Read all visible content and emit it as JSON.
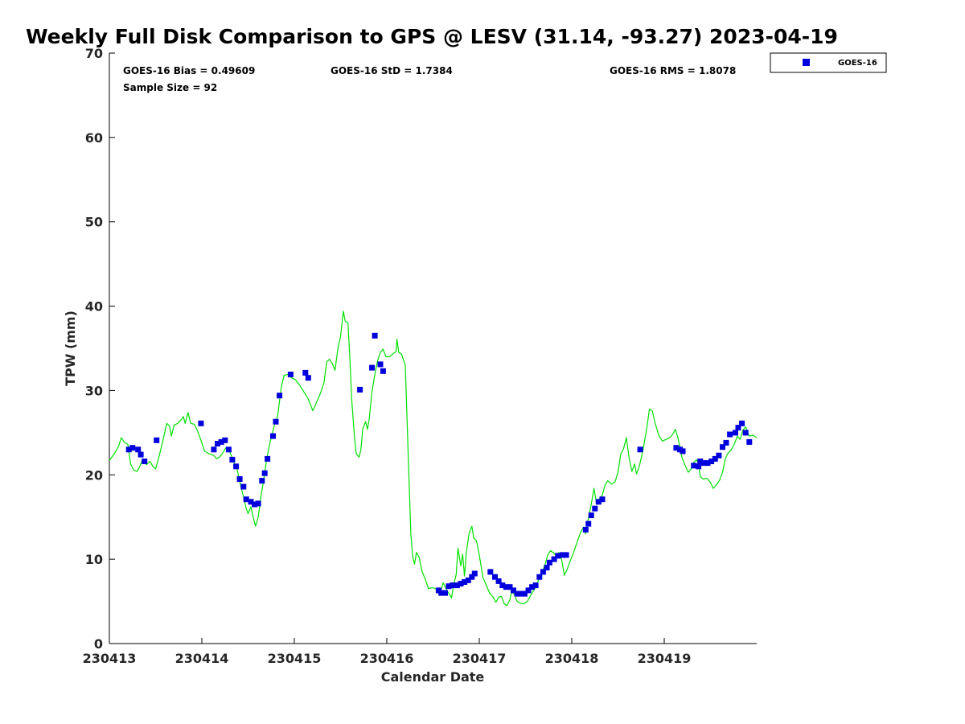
{
  "chart_data": {
    "type": "scatter",
    "title": "Weekly Full Disk Comparison to GPS @ LESV (31.14, -93.27) 2023-04-19",
    "xlabel": "Calendar Date",
    "ylabel": "TPW (mm)",
    "xlim": [
      0,
      7
    ],
    "ylim": [
      0,
      70
    ],
    "x_tick_labels": [
      "230413",
      "230414",
      "230415",
      "230416",
      "230417",
      "230418",
      "230419"
    ],
    "y_ticks": [
      0,
      10,
      20,
      30,
      40,
      50,
      60,
      70
    ],
    "grid": false,
    "legend_placement": "outside-top-right",
    "stats": {
      "bias": "GOES-16 Bias = 0.49609",
      "std": "GOES-16 StD = 1.7384",
      "rms": "GOES-16 RMS = 1.8078",
      "sample": "Sample Size = 92"
    },
    "series": [
      {
        "name": "GOES-16",
        "kind": "scatter",
        "color": "#0000dd",
        "points": [
          [
            0.21,
            23.0
          ],
          [
            0.25,
            23.2
          ],
          [
            0.31,
            23.0
          ],
          [
            0.34,
            22.4
          ],
          [
            0.38,
            21.6
          ],
          [
            0.51,
            24.1
          ],
          [
            0.99,
            26.1
          ],
          [
            1.13,
            23.0
          ],
          [
            1.17,
            23.7
          ],
          [
            1.21,
            23.9
          ],
          [
            1.25,
            24.1
          ],
          [
            1.29,
            23.0
          ],
          [
            1.33,
            21.8
          ],
          [
            1.37,
            21.0
          ],
          [
            1.41,
            19.5
          ],
          [
            1.45,
            18.6
          ],
          [
            1.48,
            17.1
          ],
          [
            1.53,
            16.8
          ],
          [
            1.57,
            16.5
          ],
          [
            1.61,
            16.6
          ],
          [
            1.65,
            19.3
          ],
          [
            1.68,
            20.2
          ],
          [
            1.71,
            21.9
          ],
          [
            1.77,
            24.6
          ],
          [
            1.8,
            26.3
          ],
          [
            1.84,
            29.4
          ],
          [
            1.96,
            31.9
          ],
          [
            2.12,
            32.1
          ],
          [
            2.15,
            31.5
          ],
          [
            2.71,
            30.1
          ],
          [
            2.84,
            32.7
          ],
          [
            2.87,
            36.5
          ],
          [
            2.93,
            33.1
          ],
          [
            2.96,
            32.3
          ],
          [
            3.56,
            6.3
          ],
          [
            3.59,
            6.0
          ],
          [
            3.63,
            6.0
          ],
          [
            3.67,
            6.8
          ],
          [
            3.71,
            6.9
          ],
          [
            3.76,
            6.9
          ],
          [
            3.8,
            7.1
          ],
          [
            3.84,
            7.3
          ],
          [
            3.88,
            7.5
          ],
          [
            3.92,
            7.9
          ],
          [
            3.95,
            8.3
          ],
          [
            4.12,
            8.5
          ],
          [
            4.17,
            7.9
          ],
          [
            4.21,
            7.4
          ],
          [
            4.25,
            6.9
          ],
          [
            4.29,
            6.7
          ],
          [
            4.33,
            6.7
          ],
          [
            4.37,
            6.3
          ],
          [
            4.41,
            5.9
          ],
          [
            4.45,
            5.9
          ],
          [
            4.49,
            5.9
          ],
          [
            4.53,
            6.3
          ],
          [
            4.57,
            6.7
          ],
          [
            4.61,
            6.9
          ],
          [
            4.65,
            7.9
          ],
          [
            4.69,
            8.5
          ],
          [
            4.73,
            9.0
          ],
          [
            4.76,
            9.6
          ],
          [
            4.81,
            10.0
          ],
          [
            4.85,
            10.4
          ],
          [
            4.9,
            10.5
          ],
          [
            4.94,
            10.5
          ],
          [
            5.15,
            13.5
          ],
          [
            5.18,
            14.2
          ],
          [
            5.21,
            15.2
          ],
          [
            5.25,
            16.0
          ],
          [
            5.29,
            16.8
          ],
          [
            5.33,
            17.1
          ],
          [
            5.74,
            23.0
          ],
          [
            6.13,
            23.2
          ],
          [
            6.17,
            23.0
          ],
          [
            6.2,
            22.8
          ],
          [
            6.32,
            21.1
          ],
          [
            6.37,
            21.0
          ],
          [
            6.39,
            21.6
          ],
          [
            6.43,
            21.4
          ],
          [
            6.47,
            21.4
          ],
          [
            6.51,
            21.6
          ],
          [
            6.55,
            21.9
          ],
          [
            6.59,
            22.3
          ],
          [
            6.63,
            23.3
          ],
          [
            6.67,
            23.8
          ],
          [
            6.71,
            24.8
          ],
          [
            6.77,
            25.0
          ],
          [
            6.8,
            25.6
          ],
          [
            6.84,
            26.1
          ],
          [
            6.88,
            25.0
          ],
          [
            6.92,
            23.9
          ]
        ]
      },
      {
        "name": "GPS",
        "kind": "line",
        "color": "#00e000",
        "points": [
          [
            0.0,
            21.7
          ],
          [
            0.06,
            22.6
          ],
          [
            0.1,
            23.4
          ],
          [
            0.13,
            24.4
          ],
          [
            0.16,
            23.9
          ],
          [
            0.2,
            23.6
          ],
          [
            0.23,
            21.3
          ],
          [
            0.26,
            20.6
          ],
          [
            0.3,
            20.4
          ],
          [
            0.33,
            21.0
          ],
          [
            0.36,
            21.9
          ],
          [
            0.4,
            21.2
          ],
          [
            0.44,
            21.6
          ],
          [
            0.47,
            21.0
          ],
          [
            0.5,
            20.7
          ],
          [
            0.54,
            22.3
          ],
          [
            0.58,
            24.1
          ],
          [
            0.62,
            26.1
          ],
          [
            0.65,
            25.8
          ],
          [
            0.67,
            24.6
          ],
          [
            0.7,
            25.9
          ],
          [
            0.74,
            26.1
          ],
          [
            0.78,
            26.6
          ],
          [
            0.8,
            26.9
          ],
          [
            0.82,
            26.1
          ],
          [
            0.85,
            27.4
          ],
          [
            0.88,
            26.1
          ],
          [
            0.92,
            26.0
          ],
          [
            0.95,
            25.3
          ],
          [
            0.99,
            24.1
          ],
          [
            1.03,
            22.8
          ],
          [
            1.08,
            22.5
          ],
          [
            1.13,
            22.3
          ],
          [
            1.16,
            21.9
          ],
          [
            1.19,
            22.1
          ],
          [
            1.22,
            22.5
          ],
          [
            1.26,
            23.2
          ],
          [
            1.3,
            22.8
          ],
          [
            1.34,
            21.7
          ],
          [
            1.38,
            20.7
          ],
          [
            1.42,
            18.7
          ],
          [
            1.45,
            17.4
          ],
          [
            1.48,
            16.0
          ],
          [
            1.5,
            15.4
          ],
          [
            1.53,
            16.2
          ],
          [
            1.55,
            15.2
          ],
          [
            1.58,
            13.9
          ],
          [
            1.61,
            15.0
          ],
          [
            1.64,
            17.5
          ],
          [
            1.67,
            19.5
          ],
          [
            1.7,
            21.8
          ],
          [
            1.74,
            24.0
          ],
          [
            1.78,
            25.7
          ],
          [
            1.82,
            27.0
          ],
          [
            1.86,
            30.5
          ],
          [
            1.89,
            31.8
          ],
          [
            1.93,
            31.9
          ],
          [
            1.97,
            31.5
          ],
          [
            2.01,
            31.3
          ],
          [
            2.06,
            30.6
          ],
          [
            2.1,
            29.9
          ],
          [
            2.15,
            29.0
          ],
          [
            2.2,
            27.6
          ],
          [
            2.24,
            28.6
          ],
          [
            2.28,
            29.6
          ],
          [
            2.32,
            30.9
          ],
          [
            2.35,
            33.4
          ],
          [
            2.38,
            33.7
          ],
          [
            2.41,
            33.2
          ],
          [
            2.44,
            32.4
          ],
          [
            2.47,
            34.9
          ],
          [
            2.5,
            36.4
          ],
          [
            2.53,
            39.4
          ],
          [
            2.55,
            38.2
          ],
          [
            2.58,
            38.0
          ],
          [
            2.6,
            34.0
          ],
          [
            2.62,
            29.0
          ],
          [
            2.65,
            24.5
          ],
          [
            2.67,
            22.5
          ],
          [
            2.7,
            22.1
          ],
          [
            2.72,
            23.0
          ],
          [
            2.74,
            25.5
          ],
          [
            2.77,
            26.3
          ],
          [
            2.79,
            25.4
          ],
          [
            2.81,
            26.6
          ],
          [
            2.84,
            29.9
          ],
          [
            2.87,
            31.9
          ],
          [
            2.9,
            33.5
          ],
          [
            2.93,
            34.5
          ],
          [
            2.96,
            34.9
          ],
          [
            2.99,
            34.0
          ],
          [
            3.03,
            34.0
          ],
          [
            3.07,
            34.4
          ],
          [
            3.1,
            34.6
          ],
          [
            3.11,
            36.1
          ],
          [
            3.13,
            34.5
          ],
          [
            3.16,
            34.3
          ],
          [
            3.2,
            33.0
          ],
          [
            3.23,
            23.0
          ],
          [
            3.26,
            13.0
          ],
          [
            3.28,
            10.3
          ],
          [
            3.3,
            9.4
          ],
          [
            3.32,
            10.8
          ],
          [
            3.35,
            10.2
          ],
          [
            3.38,
            8.6
          ],
          [
            3.42,
            7.5
          ],
          [
            3.45,
            6.5
          ],
          [
            3.48,
            6.6
          ],
          [
            3.51,
            6.6
          ],
          [
            3.55,
            6.3
          ],
          [
            3.57,
            5.7
          ],
          [
            3.61,
            7.2
          ],
          [
            3.65,
            6.3
          ],
          [
            3.68,
            5.8
          ],
          [
            3.7,
            5.4
          ],
          [
            3.72,
            6.8
          ],
          [
            3.75,
            8.2
          ],
          [
            3.77,
            11.3
          ],
          [
            3.8,
            9.2
          ],
          [
            3.82,
            10.6
          ],
          [
            3.84,
            8.0
          ],
          [
            3.86,
            10.8
          ],
          [
            3.89,
            13.1
          ],
          [
            3.92,
            13.9
          ],
          [
            3.94,
            12.5
          ],
          [
            3.97,
            12.2
          ],
          [
            4.0,
            10.5
          ],
          [
            4.04,
            7.8
          ],
          [
            4.07,
            7.1
          ],
          [
            4.11,
            6.0
          ],
          [
            4.15,
            5.5
          ],
          [
            4.18,
            4.9
          ],
          [
            4.21,
            5.5
          ],
          [
            4.24,
            5.6
          ],
          [
            4.27,
            4.7
          ],
          [
            4.3,
            4.5
          ],
          [
            4.33,
            5.2
          ],
          [
            4.35,
            6.2
          ],
          [
            4.38,
            5.8
          ],
          [
            4.41,
            5.0
          ],
          [
            4.44,
            4.8
          ],
          [
            4.48,
            4.7
          ],
          [
            4.52,
            5.0
          ],
          [
            4.56,
            5.8
          ],
          [
            4.6,
            6.5
          ],
          [
            4.64,
            7.5
          ],
          [
            4.68,
            8.5
          ],
          [
            4.71,
            9.3
          ],
          [
            4.74,
            10.5
          ],
          [
            4.77,
            11.0
          ],
          [
            4.8,
            10.8
          ],
          [
            4.83,
            10.4
          ],
          [
            4.86,
            10.8
          ],
          [
            4.89,
            10.0
          ],
          [
            4.92,
            8.1
          ],
          [
            4.95,
            8.8
          ],
          [
            4.98,
            9.7
          ],
          [
            5.02,
            10.8
          ],
          [
            5.06,
            12.1
          ],
          [
            5.1,
            13.3
          ],
          [
            5.13,
            13.8
          ],
          [
            5.15,
            13.0
          ],
          [
            5.18,
            14.9
          ],
          [
            5.21,
            16.5
          ],
          [
            5.24,
            18.4
          ],
          [
            5.27,
            16.5
          ],
          [
            5.3,
            17.2
          ],
          [
            5.33,
            17.6
          ],
          [
            5.36,
            18.8
          ],
          [
            5.39,
            19.3
          ],
          [
            5.43,
            18.9
          ],
          [
            5.47,
            19.2
          ],
          [
            5.5,
            20.3
          ],
          [
            5.53,
            22.5
          ],
          [
            5.56,
            23.1
          ],
          [
            5.59,
            24.4
          ],
          [
            5.62,
            22.0
          ],
          [
            5.65,
            20.4
          ],
          [
            5.68,
            21.3
          ],
          [
            5.7,
            20.1
          ],
          [
            5.73,
            21.0
          ],
          [
            5.77,
            22.9
          ],
          [
            5.81,
            25.4
          ],
          [
            5.84,
            27.8
          ],
          [
            5.87,
            27.6
          ],
          [
            5.9,
            26.2
          ],
          [
            5.94,
            24.7
          ],
          [
            5.98,
            24.0
          ],
          [
            6.02,
            24.2
          ],
          [
            6.06,
            24.4
          ],
          [
            6.09,
            24.8
          ],
          [
            6.12,
            25.4
          ],
          [
            6.15,
            24.3
          ],
          [
            6.19,
            22.1
          ],
          [
            6.23,
            21.0
          ],
          [
            6.26,
            20.3
          ],
          [
            6.29,
            20.7
          ],
          [
            6.32,
            21.5
          ],
          [
            6.35,
            21.8
          ],
          [
            6.37,
            21.3
          ],
          [
            6.39,
            19.8
          ],
          [
            6.42,
            19.5
          ],
          [
            6.46,
            19.6
          ],
          [
            6.5,
            19.1
          ],
          [
            6.53,
            18.4
          ],
          [
            6.57,
            18.9
          ],
          [
            6.6,
            19.4
          ],
          [
            6.63,
            20.3
          ],
          [
            6.66,
            21.9
          ],
          [
            6.69,
            22.6
          ],
          [
            6.72,
            22.9
          ],
          [
            6.76,
            23.7
          ],
          [
            6.79,
            24.6
          ],
          [
            6.82,
            24.2
          ],
          [
            6.85,
            25.3
          ],
          [
            6.88,
            25.7
          ],
          [
            6.92,
            24.6
          ],
          [
            6.96,
            24.7
          ],
          [
            7.0,
            24.4
          ]
        ]
      }
    ],
    "legend": [
      {
        "label": "GOES-16",
        "color": "#0000dd",
        "marker": "square"
      }
    ]
  }
}
